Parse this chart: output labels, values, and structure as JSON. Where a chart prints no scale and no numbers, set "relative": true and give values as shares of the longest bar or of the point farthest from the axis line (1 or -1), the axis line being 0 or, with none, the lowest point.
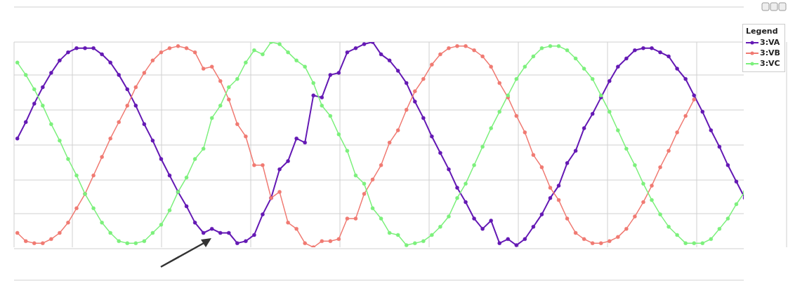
{
  "chart_data": {
    "type": "line",
    "relative": true,
    "legend_title": "Legend",
    "legend": "top right",
    "grid": true,
    "marker": "circle",
    "line_style": "solid",
    "categories": [
      null,
      null,
      null,
      null,
      null,
      null,
      null,
      null,
      null,
      null,
      null,
      null,
      null,
      null,
      null,
      null,
      null,
      null,
      null,
      null,
      null,
      null,
      null,
      null,
      null,
      null,
      null,
      null,
      null,
      null,
      null,
      null,
      null,
      null,
      null,
      null,
      null,
      null,
      null,
      null,
      null,
      null,
      null,
      null,
      null,
      null,
      null,
      null,
      null,
      null,
      null,
      null,
      null,
      null,
      null,
      null,
      null,
      null,
      null,
      null,
      null,
      null,
      null,
      null,
      null,
      null,
      null,
      null,
      null,
      null,
      null,
      null,
      null,
      null,
      null,
      null,
      null,
      null,
      null,
      null,
      null,
      null,
      null,
      null,
      null,
      null,
      null
    ],
    "series": [
      {
        "name": "3:VA",
        "color": "#6419b4",
        "values": [
          0.53,
          0.61,
          0.7,
          0.78,
          0.85,
          0.91,
          0.95,
          0.97,
          0.97,
          0.97,
          0.94,
          0.9,
          0.84,
          0.77,
          0.69,
          0.6,
          0.52,
          0.43,
          0.35,
          0.27,
          0.2,
          0.12,
          0.07,
          0.09,
          0.07,
          0.07,
          0.02,
          0.03,
          0.06,
          0.16,
          0.24,
          0.38,
          0.42,
          0.53,
          0.51,
          0.74,
          0.73,
          0.84,
          0.85,
          0.95,
          0.97,
          0.99,
          1.0,
          0.94,
          0.91,
          0.86,
          0.8,
          0.71,
          0.63,
          0.54,
          0.46,
          0.38,
          0.29,
          0.22,
          0.14,
          0.09,
          0.13,
          0.02,
          0.04,
          0.01,
          0.04,
          0.1,
          0.16,
          0.24,
          0.3,
          0.41,
          0.47,
          0.58,
          0.65,
          0.73,
          0.81,
          0.88,
          0.92,
          0.96,
          0.97,
          0.97,
          0.95,
          0.93,
          0.87,
          0.82,
          0.74,
          0.66,
          0.57,
          0.49,
          0.4,
          0.32,
          0.24
        ]
      },
      {
        "name": "3:VB",
        "color": "#f07a72",
        "values": [
          0.07,
          0.03,
          0.02,
          0.02,
          0.04,
          0.07,
          0.12,
          0.19,
          0.26,
          0.35,
          0.44,
          0.53,
          0.61,
          0.69,
          0.78,
          0.85,
          0.91,
          0.95,
          0.97,
          0.98,
          0.97,
          0.95,
          0.87,
          0.88,
          0.81,
          0.72,
          0.6,
          0.54,
          0.4,
          0.4,
          0.24,
          0.27,
          0.12,
          0.09,
          0.02,
          0.0,
          0.03,
          0.03,
          0.04,
          0.14,
          0.14,
          0.26,
          0.33,
          0.4,
          0.51,
          0.57,
          0.67,
          0.76,
          0.82,
          0.89,
          0.94,
          0.97,
          0.98,
          0.98,
          0.96,
          0.93,
          0.88,
          0.8,
          0.73,
          0.64,
          0.56,
          0.45,
          0.39,
          0.29,
          0.23,
          0.14,
          0.07,
          0.04,
          0.02,
          0.02,
          0.03,
          0.05,
          0.09,
          0.15,
          0.22,
          0.3,
          0.39,
          0.47,
          0.56,
          0.64,
          0.72,
          null,
          null,
          null,
          null,
          null,
          null
        ]
      },
      {
        "name": "3:VC",
        "color": "#7cf07c",
        "values": [
          0.9,
          0.84,
          0.77,
          0.69,
          0.6,
          0.52,
          0.43,
          0.35,
          0.26,
          0.19,
          0.12,
          0.07,
          0.03,
          0.02,
          0.02,
          0.03,
          0.07,
          0.11,
          0.18,
          0.27,
          0.34,
          0.43,
          0.48,
          0.63,
          0.69,
          0.78,
          0.82,
          0.9,
          0.96,
          0.94,
          1.0,
          0.99,
          0.95,
          0.91,
          0.88,
          0.8,
          0.69,
          0.64,
          0.55,
          0.47,
          0.35,
          0.31,
          0.19,
          0.14,
          0.07,
          0.06,
          0.01,
          0.02,
          0.03,
          0.06,
          0.1,
          0.15,
          0.24,
          0.31,
          0.4,
          0.49,
          0.58,
          0.66,
          0.74,
          0.82,
          0.88,
          0.93,
          0.97,
          0.98,
          0.98,
          0.96,
          0.92,
          0.87,
          0.82,
          0.74,
          0.66,
          0.57,
          0.48,
          0.4,
          0.31,
          0.23,
          0.16,
          0.1,
          0.06,
          0.02,
          0.02,
          0.02,
          0.04,
          0.09,
          0.14,
          0.21,
          0.27
        ]
      }
    ]
  }
}
